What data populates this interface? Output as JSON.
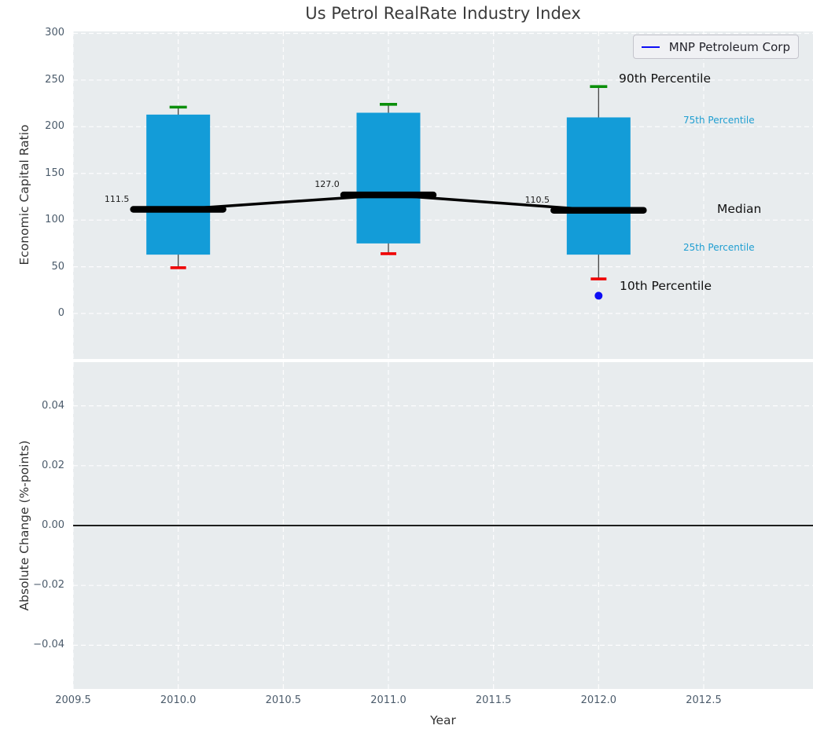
{
  "title": "Us Petrol RealRate Industry Index",
  "legend": {
    "label": "MNP Petroleum Corp"
  },
  "colors": {
    "box_fill": "#139cd8",
    "cap_90th": "#0a8f0a",
    "cap_10th": "#ef0000",
    "median_line": "#000000",
    "whisker": "#444444",
    "company_marker": "#0d0df5",
    "axes_background": "#e8ecee",
    "grid": "rgba(255,255,255,0.9)",
    "tick_text": "#4b5b6b",
    "cyan_label": "#1f9ed1"
  },
  "annotations": {
    "p90": "90th Percentile",
    "p75": "75th Percentile",
    "median": "Median",
    "p25": "25th Percentile",
    "p10": "10th Percentile"
  },
  "chart_data": [
    {
      "type": "boxplot+line",
      "title": "Us Petrol RealRate Industry Index",
      "ylabel": "Economic Capital Ratio",
      "ylim": [
        -48.8,
        302.1
      ],
      "xlim": [
        2009.5,
        2013.02
      ],
      "yticks": [
        0,
        50,
        100,
        150,
        200,
        250,
        300
      ],
      "xticks": [
        2009.5,
        2010.0,
        2010.5,
        2011.0,
        2011.5,
        2012.0,
        2012.5
      ],
      "grid": true,
      "legend_position": "upper right",
      "boxes": [
        {
          "x": 2010,
          "p10": 49,
          "p25": 63,
          "median": 111.5,
          "p75": 213,
          "p90": 221
        },
        {
          "x": 2011,
          "p10": 64,
          "p25": 75,
          "median": 127.0,
          "p75": 215,
          "p90": 224
        },
        {
          "x": 2012,
          "p10": 37,
          "p25": 63,
          "median": 110.5,
          "p75": 210,
          "p90": 243
        }
      ],
      "median_value_labels": [
        "111.5",
        "127.0",
        "110.5"
      ],
      "company_series": {
        "name": "MNP Petroleum Corp",
        "points": [
          {
            "x": 2012,
            "y": 19
          }
        ]
      }
    },
    {
      "type": "line",
      "ylabel": "Absolute Change (%-points)",
      "xlabel": "Year",
      "ylim": [
        -0.0546,
        0.0546
      ],
      "xlim": [
        2009.5,
        2013.02
      ],
      "yticks": [
        -0.04,
        -0.02,
        0.0,
        0.02,
        0.04
      ],
      "xticks": [
        2009.5,
        2010.0,
        2010.5,
        2011.0,
        2011.5,
        2012.0,
        2012.5
      ],
      "grid": true,
      "zero_line": true,
      "series": []
    }
  ]
}
